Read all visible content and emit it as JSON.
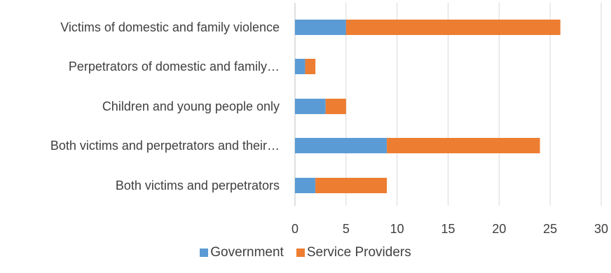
{
  "chart_data": {
    "type": "bar",
    "orientation": "horizontal",
    "stacked": true,
    "categories": [
      "Victims of domestic and family violence",
      "Perpetrators of domestic and family…",
      "Children and young people only",
      "Both victims and perpetrators and their…",
      "Both victims and perpetrators"
    ],
    "series": [
      {
        "name": "Government",
        "color": "#5B9BD5",
        "values": [
          5,
          1,
          3,
          9,
          2
        ]
      },
      {
        "name": "Service Providers",
        "color": "#ED7D31",
        "values": [
          21,
          1,
          2,
          15,
          7
        ]
      }
    ],
    "xlim": [
      0,
      30
    ],
    "xticks": [
      "0",
      "5",
      "10",
      "15",
      "20",
      "25",
      "30"
    ],
    "grid": "vertical",
    "legend": "bottom"
  }
}
